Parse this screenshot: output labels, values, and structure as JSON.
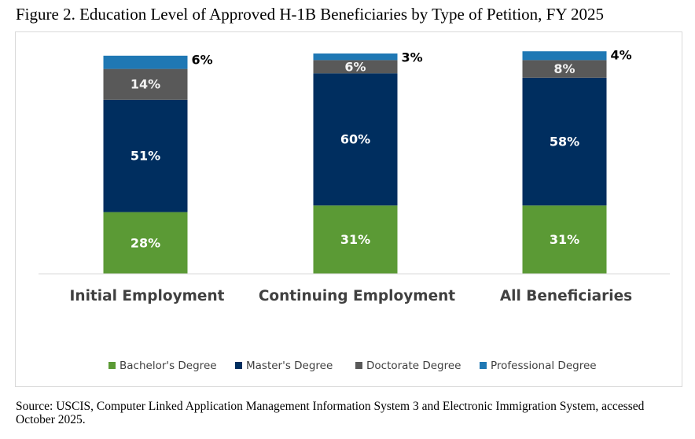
{
  "figure": {
    "title": "Figure 2. Education Level of Approved H-1B Beneficiaries by Type of Petition, FY 2025",
    "source": "Source: USCIS, Computer Linked Application Management Information System 3 and Electronic Immigration System, accessed October 2025."
  },
  "chart_data": {
    "type": "bar",
    "stacked": true,
    "title": "Figure 2. Education Level of Approved H-1B Beneficiaries by Type of Petition, FY 2025",
    "categories": [
      "Initial Employment",
      "Continuing Employment",
      "All Beneficiaries"
    ],
    "series": [
      {
        "name": "Bachelor's Degree",
        "color": "#5b9a35",
        "values": [
          28,
          31,
          31
        ]
      },
      {
        "name": "Master's Degree",
        "color": "#002e5f",
        "values": [
          51,
          60,
          58
        ]
      },
      {
        "name": "Doctorate Degree",
        "color": "#595959",
        "values": [
          14,
          6,
          8
        ]
      },
      {
        "name": "Professional Degree",
        "color": "#1f78b4",
        "values": [
          6,
          3,
          4
        ]
      }
    ],
    "data_labels": [
      [
        "28%",
        "51%",
        "14%",
        "6%"
      ],
      [
        "31%",
        "60%",
        "6%",
        "3%"
      ],
      [
        "31%",
        "58%",
        "8%",
        "4%"
      ]
    ],
    "ylim": [
      0,
      100
    ],
    "grid": false,
    "legend_position": "bottom"
  }
}
